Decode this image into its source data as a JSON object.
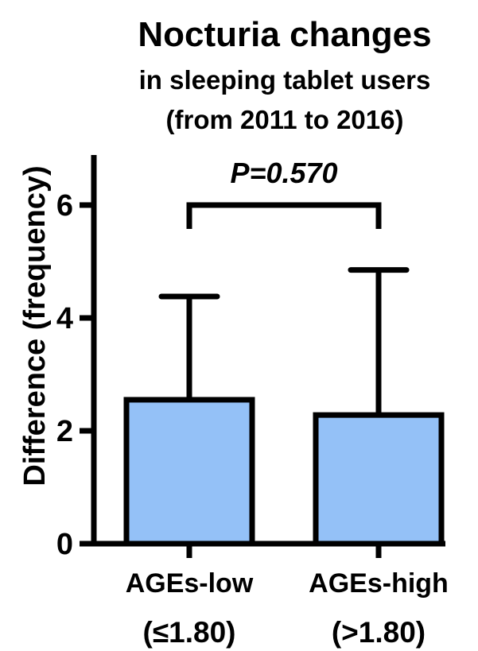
{
  "chart_data": {
    "type": "bar",
    "title": "Nocturia changes",
    "subtitle_lines": [
      "in sleeping tablet users",
      "(from 2011 to 2016)"
    ],
    "ylabel": "Difference (frequency)",
    "xlabel": "",
    "categories": [
      {
        "line1": "AGEs-low",
        "line2": "(≤1.80)"
      },
      {
        "line1": "AGEs-high",
        "line2": ">1.80)"
      }
    ],
    "series": [
      {
        "values": [
          2.55,
          2.28
        ],
        "error_upper": [
          1.83,
          2.57
        ]
      }
    ],
    "ylim": [
      0,
      7
    ],
    "yticks": [
      0,
      2,
      4,
      6
    ],
    "grid": false,
    "bar_color": "#94c1f7",
    "edge_color": "#000000",
    "annotation": {
      "text": "P=0.570",
      "bracket_y": 6.0
    },
    "categories_line2_display": [
      "(≤1.80)",
      "(>1.80)"
    ]
  }
}
